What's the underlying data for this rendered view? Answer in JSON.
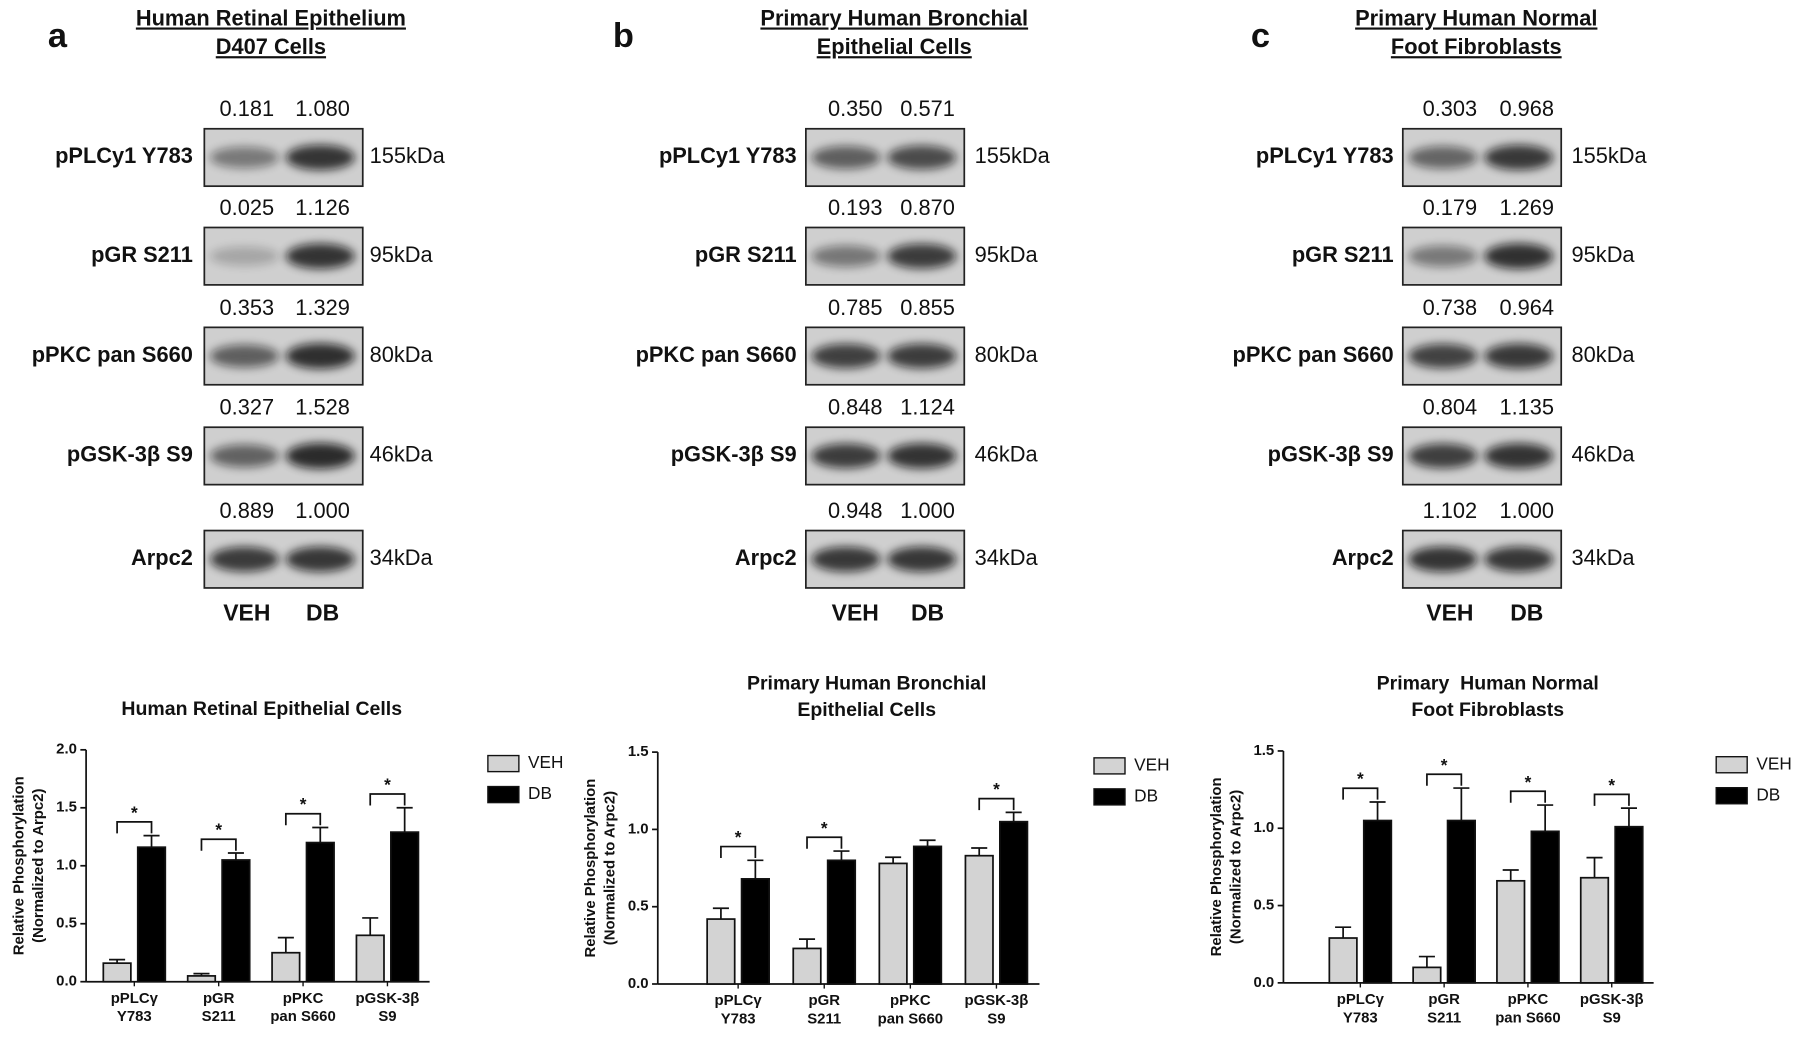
{
  "panels": [
    {
      "letter": "a",
      "title": [
        "Human Retinal Epithelium",
        "D407 Cells"
      ],
      "lanes": [
        "VEH",
        "DB"
      ],
      "rows": [
        {
          "label": "pPLCy1 Y783",
          "quant": [
            "0.181",
            "1.080"
          ],
          "size": "155kDa"
        },
        {
          "label": "pGR S211",
          "quant": [
            "0.025",
            "1.126"
          ],
          "size": "95kDa"
        },
        {
          "label": "pPKC pan S660",
          "quant": [
            "0.353",
            "1.329"
          ],
          "size": "80kDa"
        },
        {
          "label": "pGSK-3β S9",
          "quant": [
            "0.327",
            "1.528"
          ],
          "size": "46kDa"
        },
        {
          "label": "Arpc2",
          "quant": [
            "0.889",
            "1.000"
          ],
          "size": "34kDa"
        }
      ]
    },
    {
      "letter": "b",
      "title": [
        "Primary Human Bronchial",
        "Epithelial Cells"
      ],
      "lanes": [
        "VEH",
        "DB"
      ],
      "rows": [
        {
          "label": "pPLCy1 Y783",
          "quant": [
            "0.350",
            "0.571"
          ],
          "size": "155kDa"
        },
        {
          "label": "pGR S211",
          "quant": [
            "0.193",
            "0.870"
          ],
          "size": "95kDa"
        },
        {
          "label": "pPKC pan S660",
          "quant": [
            "0.785",
            "0.855"
          ],
          "size": "80kDa"
        },
        {
          "label": "pGSK-3β S9",
          "quant": [
            "0.848",
            "1.124"
          ],
          "size": "46kDa"
        },
        {
          "label": "Arpc2",
          "quant": [
            "0.948",
            "1.000"
          ],
          "size": "34kDa"
        }
      ]
    },
    {
      "letter": "c",
      "title": [
        "Primary Human Normal",
        "Foot Fibroblasts"
      ],
      "lanes": [
        "VEH",
        "DB"
      ],
      "rows": [
        {
          "label": "pPLCy1 Y783",
          "quant": [
            "0.303",
            "0.968"
          ],
          "size": "155kDa"
        },
        {
          "label": "pGR S211",
          "quant": [
            "0.179",
            "1.269"
          ],
          "size": "95kDa"
        },
        {
          "label": "pPKC pan S660",
          "quant": [
            "0.738",
            "0.964"
          ],
          "size": "80kDa"
        },
        {
          "label": "pGSK-3β S9",
          "quant": [
            "0.804",
            "1.135"
          ],
          "size": "46kDa"
        },
        {
          "label": "Arpc2",
          "quant": [
            "1.102",
            "1.000"
          ],
          "size": "34kDa"
        }
      ]
    }
  ],
  "chart_data": [
    {
      "type": "bar",
      "title": [
        "Human Retinal Epithelial Cells"
      ],
      "y_label": [
        "Relative Phosphorylation",
        "(Normalized to Arpc2)"
      ],
      "categories": [
        [
          "pPLCγ",
          "Y783"
        ],
        [
          "pGR",
          "S211"
        ],
        [
          "pPKC",
          "pan S660"
        ],
        [
          "pGSK-3β",
          "S9"
        ]
      ],
      "series": [
        {
          "name": "VEH",
          "color": "#d3d3d3",
          "values": [
            0.16,
            0.05,
            0.25,
            0.4
          ],
          "errors": [
            0.03,
            0.02,
            0.13,
            0.15
          ]
        },
        {
          "name": "DB",
          "color": "#000000",
          "values": [
            1.16,
            1.05,
            1.2,
            1.29
          ],
          "errors": [
            0.1,
            0.06,
            0.13,
            0.21
          ]
        }
      ],
      "significance": [
        "*",
        "*",
        "*",
        "*"
      ],
      "ylim": [
        0,
        2
      ],
      "yticks": [
        {
          "value": 0,
          "label": "0.0"
        },
        {
          "value": 0.5,
          "label": "0.5"
        },
        {
          "value": 1,
          "label": "1.0"
        },
        {
          "value": 1.5,
          "label": "1.5"
        },
        {
          "value": 2,
          "label": "2.0"
        }
      ]
    },
    {
      "type": "bar",
      "title": [
        "Primary Human Bronchial",
        "Epithelial Cells"
      ],
      "y_label": [
        "Relative Phosphorylation",
        "(Normalized to Arpc2)"
      ],
      "categories": [
        [
          "pPLCγ",
          "Y783"
        ],
        [
          "pGR",
          "S211"
        ],
        [
          "pPKC",
          "pan S660"
        ],
        [
          "pGSK-3β",
          "S9"
        ]
      ],
      "series": [
        {
          "name": "VEH",
          "color": "#d3d3d3",
          "values": [
            0.42,
            0.23,
            0.78,
            0.83
          ],
          "errors": [
            0.07,
            0.06,
            0.04,
            0.05
          ]
        },
        {
          "name": "DB",
          "color": "#000000",
          "values": [
            0.68,
            0.8,
            0.89,
            1.05
          ],
          "errors": [
            0.12,
            0.06,
            0.04,
            0.06
          ]
        }
      ],
      "significance": [
        "*",
        "*",
        null,
        "*"
      ],
      "ylim": [
        0,
        1.5
      ],
      "yticks": [
        {
          "value": 0,
          "label": "0.0"
        },
        {
          "value": 0.5,
          "label": "0.5"
        },
        {
          "value": 1,
          "label": "1.0"
        },
        {
          "value": 1.5,
          "label": "1.5"
        }
      ]
    },
    {
      "type": "bar",
      "title": [
        "Primary  Human Normal",
        "Foot Fibroblasts"
      ],
      "y_label": [
        "Relative Phosphorylation",
        "(Normalized to Arpc2)"
      ],
      "categories": [
        [
          "pPLCγ",
          "Y783"
        ],
        [
          "pGR",
          "S211"
        ],
        [
          "pPKC",
          "pan S660"
        ],
        [
          "pGSK-3β",
          "S9"
        ]
      ],
      "series": [
        {
          "name": "VEH",
          "color": "#d3d3d3",
          "values": [
            0.29,
            0.1,
            0.66,
            0.68
          ],
          "errors": [
            0.07,
            0.07,
            0.07,
            0.13
          ]
        },
        {
          "name": "DB",
          "color": "#000000",
          "values": [
            1.05,
            1.05,
            0.98,
            1.01
          ],
          "errors": [
            0.12,
            0.21,
            0.17,
            0.12
          ]
        }
      ],
      "significance": [
        "*",
        "*",
        "*",
        "*"
      ],
      "ylim": [
        0,
        1.5
      ],
      "yticks": [
        {
          "value": 0,
          "label": "0.0"
        },
        {
          "value": 0.5,
          "label": "0.5"
        },
        {
          "value": 1,
          "label": "1.0"
        },
        {
          "value": 1.5,
          "label": "1.5"
        }
      ]
    }
  ]
}
